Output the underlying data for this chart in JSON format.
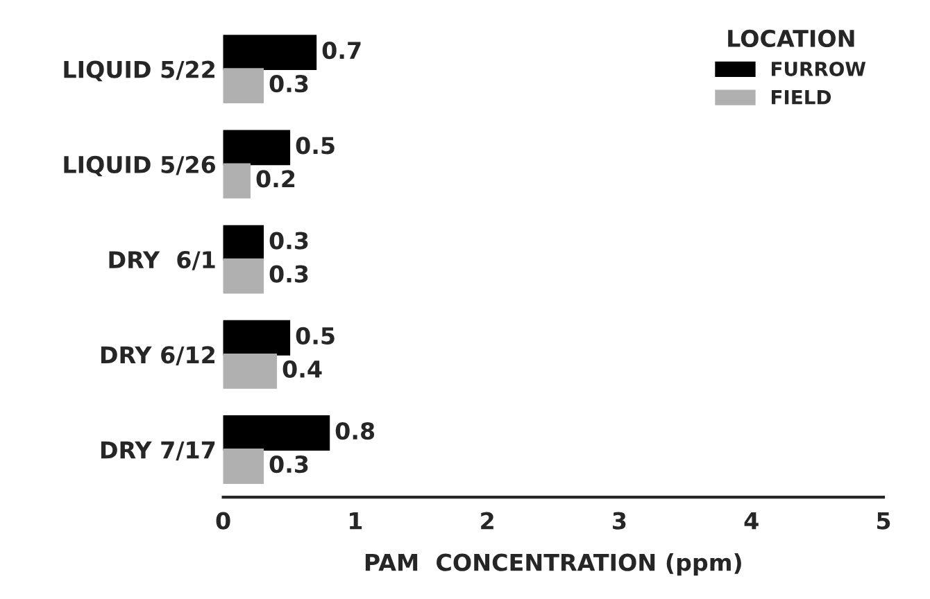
{
  "chart_data": {
    "type": "bar",
    "orientation": "horizontal",
    "xlabel": "PAM  CONCENTRATION (ppm)",
    "legend_title": "LOCATION",
    "legend": "top right",
    "categories": [
      "LIQUID 5/22",
      "LIQUID 5/26",
      "DRY  6/1",
      "DRY 6/12",
      "DRY 7/17"
    ],
    "series": [
      {
        "name": "FURROW",
        "color": "#000000",
        "values": [
          0.7,
          0.5,
          0.3,
          0.5,
          0.8
        ]
      },
      {
        "name": "FIELD",
        "color": "#b0b0b0",
        "values": [
          0.3,
          0.2,
          0.3,
          0.4,
          0.3
        ]
      }
    ],
    "xlim": [
      0,
      5
    ],
    "xticks": [
      0,
      1,
      2,
      3,
      4,
      5
    ],
    "data_labels": true,
    "grid": false
  }
}
